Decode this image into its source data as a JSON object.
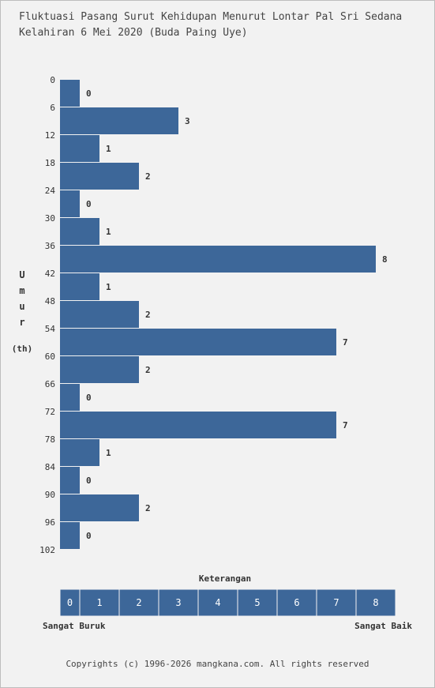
{
  "title_line1": "Fluktuasi Pasang Surut Kehidupan Menurut Lontar Pal Sri Sedana",
  "title_line2": "Kelahiran 6 Mei 2020 (Buda Paing Uye)",
  "y_axis_label": [
    "U",
    "m",
    "u",
    "r",
    "(th)"
  ],
  "legend": {
    "title": "Keterangan",
    "scale": [
      "0",
      "1",
      "2",
      "3",
      "4",
      "5",
      "6",
      "7",
      "8"
    ],
    "left_label": "Sangat Buruk",
    "right_label": "Sangat Baik"
  },
  "copyright": "Copyrights (c) 1996-2026 mangkana.com. All rights reserved",
  "colors": {
    "bar": "#3d6799",
    "background": "#f2f2f2",
    "text": "#333333"
  },
  "chart_data": {
    "type": "bar",
    "orientation": "horizontal",
    "tick_labels": [
      "0",
      "6",
      "12",
      "18",
      "24",
      "30",
      "36",
      "42",
      "48",
      "54",
      "60",
      "66",
      "72",
      "78",
      "84",
      "90",
      "96",
      "102"
    ],
    "categories": [
      "0-6",
      "6-12",
      "12-18",
      "18-24",
      "24-30",
      "30-36",
      "36-42",
      "42-48",
      "48-54",
      "54-60",
      "60-66",
      "66-72",
      "72-78",
      "78-84",
      "84-90",
      "90-96",
      "96-102"
    ],
    "values": [
      0,
      3,
      1,
      2,
      0,
      1,
      8,
      1,
      2,
      7,
      2,
      0,
      7,
      1,
      0,
      2,
      0
    ],
    "xlim": [
      0,
      8
    ],
    "ylabel": "Umur (th)",
    "grid": false
  }
}
